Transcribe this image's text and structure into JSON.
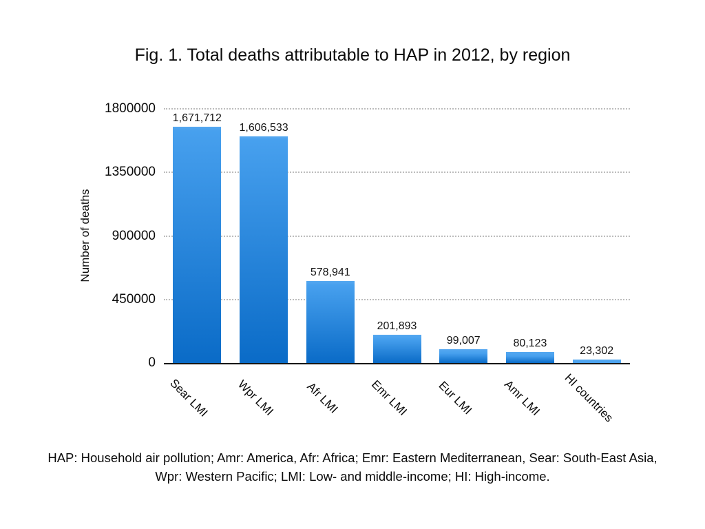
{
  "title": "Fig. 1. Total deaths attributable to HAP in 2012, by region",
  "footnote": "HAP: Household air pollution; Amr: America, Afr: Africa; Emr: Eastern Mediterranean, Sear: South-East Asia, Wpr: Western Pacific; LMI: Low- and middle-income; HI: High-income.",
  "chart_data": {
    "type": "bar",
    "title": "Fig. 1. Total deaths attributable to HAP in 2012, by region",
    "xlabel": "",
    "ylabel": "Number of deaths",
    "categories": [
      "Sear LMI",
      "Wpr LMI",
      "Afr LMI",
      "Emr LMI",
      "Eur LMI",
      "Amr LMI",
      "HI countries"
    ],
    "values": [
      1671712,
      1606533,
      578941,
      201893,
      99007,
      80123,
      23302
    ],
    "value_labels": [
      "1,671,712",
      "1,606,533",
      "578,941",
      "201,893",
      "99,007",
      "80,123",
      "23,302"
    ],
    "ylim": [
      0,
      1800000
    ],
    "yticks": [
      0,
      450000,
      900000,
      1350000,
      1800000
    ],
    "ytick_labels": [
      "0",
      "450000",
      "900000",
      "1350000",
      "1800000"
    ],
    "grid": "horizontal-dotted",
    "legend_position": "none",
    "bar_color_top": "#4AA0EE",
    "bar_color_bottom": "#0A6BC7",
    "gridline_color": "#BCBCBC",
    "axis_line_color": "#161616",
    "background_color": "#FFFFFF"
  }
}
